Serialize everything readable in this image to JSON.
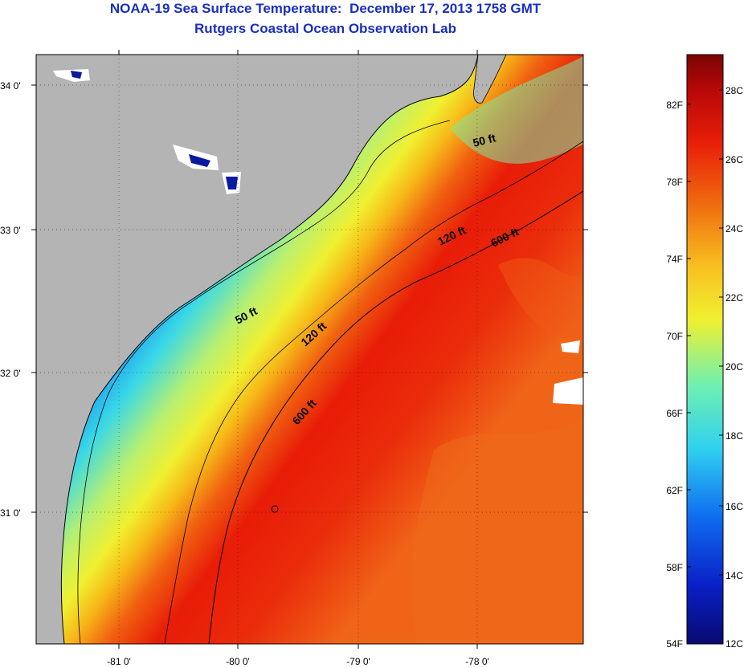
{
  "title": {
    "line1": "NOAA-19 Sea Surface Temperature:  December 17, 2013 1758 GMT",
    "line2": "Rutgers Coastal Ocean Observation Lab"
  },
  "map": {
    "lat_labels": [
      "34 0'",
      "33 0'",
      "32 0'",
      "31 0'"
    ],
    "lon_labels": [
      "-81 0'",
      "-80 0'",
      "-79 0'",
      "-78 0'"
    ],
    "contour_labels": [
      "50 ft",
      "50 ft",
      "120 ft",
      "120 ft",
      "600 ft",
      "600 ft"
    ],
    "colors": {
      "land": "#b4b4b4",
      "cloud": "#ffffff",
      "cold": "#0a1aa0",
      "warm": "#e81c08"
    }
  },
  "colorbar": {
    "fahrenheit_labels": [
      "82F",
      "78F",
      "74F",
      "70F",
      "66F",
      "62F",
      "58F",
      "54F"
    ],
    "celsius_labels": [
      "28C",
      "26C",
      "24C",
      "22C",
      "20C",
      "18C",
      "16C",
      "14C",
      "12C"
    ]
  }
}
